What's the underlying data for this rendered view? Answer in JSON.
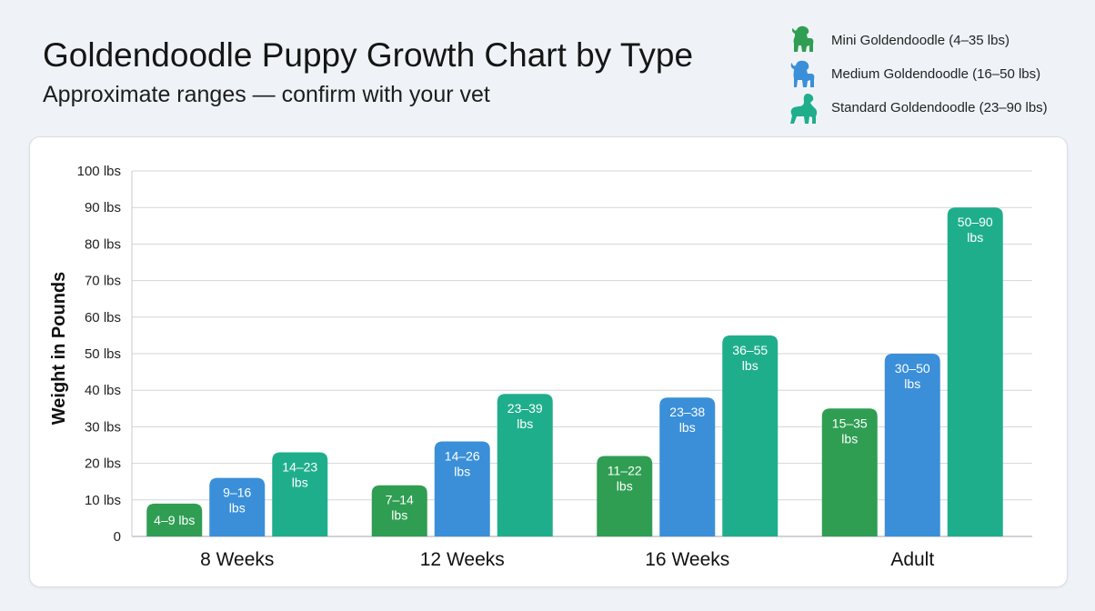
{
  "title": "Goldendoodle Puppy Growth Chart by Type",
  "subtitle": "Approximate ranges — confirm with your vet",
  "legend": [
    {
      "label": "Mini Goldendoodle (4–35 lbs)",
      "icon": "dog-icon",
      "color": "#2f9e52"
    },
    {
      "label": "Medium Goldendoodle (16–50 lbs)",
      "icon": "dog-icon",
      "color": "#3a8fd8"
    },
    {
      "label": "Standard Goldendoodle (23–90 lbs)",
      "icon": "dog-icon",
      "color": "#1fae8c"
    }
  ],
  "chart_data": {
    "type": "bar",
    "title": "Goldendoodle Puppy Growth Chart by Type",
    "ylabel": "Weight in Pounds",
    "xlabel": "",
    "ylim": [
      0,
      100
    ],
    "yticks": [
      "0",
      "10 lbs",
      "20 lbs",
      "30 lbs",
      "40 lbs",
      "50 lbs",
      "60 lbs",
      "70 lbs",
      "80 lbs",
      "90 lbs",
      "100 lbs"
    ],
    "grid": true,
    "legend_position": "top-right",
    "categories": [
      "8 Weeks",
      "12 Weeks",
      "16 Weeks",
      "Adult"
    ],
    "series": [
      {
        "name": "Mini Goldendoodle (4–35 lbs)",
        "color": "#2f9e52",
        "low": [
          4,
          7,
          11,
          15
        ],
        "high": [
          9,
          14,
          22,
          35
        ],
        "labels": [
          "4–9 lbs",
          "7–14 lbs",
          "11–22 lbs",
          "15–35 lbs"
        ]
      },
      {
        "name": "Medium Goldendoodle (16–50 lbs)",
        "color": "#3a8fd8",
        "low": [
          9,
          14,
          23,
          30
        ],
        "high": [
          16,
          26,
          38,
          50
        ],
        "labels": [
          "9–16 lbs",
          "14–26 lbs",
          "23–38 lbs",
          "30–50 lbs"
        ]
      },
      {
        "name": "Standard Goldendoodle (23–90 lbs)",
        "color": "#1fae8c",
        "low": [
          14,
          23,
          36,
          50
        ],
        "high": [
          23,
          39,
          55,
          90
        ],
        "labels": [
          "14–23 lbs",
          "23–39 lbs",
          "36–55 lbs",
          "50–90 lbs"
        ]
      }
    ]
  }
}
